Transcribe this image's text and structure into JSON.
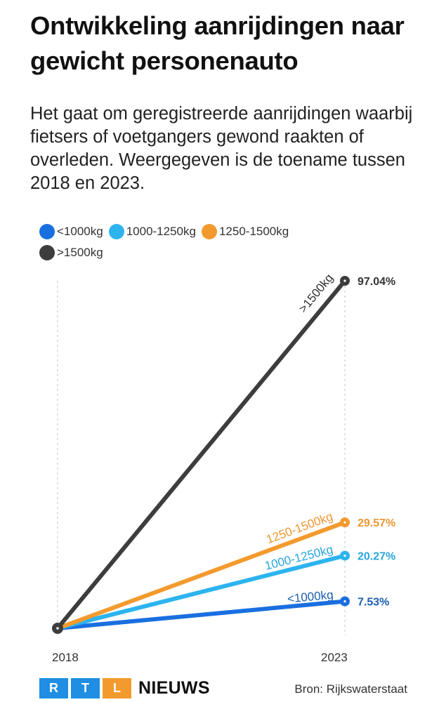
{
  "title": "Ontwikkeling aanrijdingen naar gewicht personenauto",
  "subtitle": "Het gaat om geregistreerde aanrijdingen waarbij fietsers of voetgangers gewond raakten of overleden. Weergegeven is de toename tussen 2018 en 2023.",
  "legend": [
    {
      "label": "<1000kg",
      "color": "#1a6fe0"
    },
    {
      "label": "1000-1250kg",
      "color": "#2db4ef"
    },
    {
      "label": "1250-1500kg",
      "color": "#f39a2e"
    },
    {
      "label": ">1500kg",
      "color": "#3d3d3d"
    }
  ],
  "chart_data": {
    "type": "line",
    "x": [
      "2018",
      "2023"
    ],
    "ylim": [
      0,
      97.04
    ],
    "grid": false,
    "legend_position": "top-left",
    "series": [
      {
        "name": "<1000kg",
        "values": [
          0,
          7.53
        ],
        "end_label": "7.53%",
        "color": "#1a6fe0",
        "label_color": "#1b5fb0"
      },
      {
        "name": "1000-1250kg",
        "values": [
          0,
          20.27
        ],
        "end_label": "20.27%",
        "color": "#2db4ef",
        "label_color": "#29a5de"
      },
      {
        "name": "1250-1500kg",
        "values": [
          0,
          29.57
        ],
        "end_label": "29.57%",
        "color": "#f39a2e",
        "label_color": "#ef9530"
      },
      {
        "name": ">1500kg",
        "values": [
          0,
          97.04
        ],
        "end_label": "97.04%",
        "color": "#3d3d3d",
        "label_color": "#333333"
      }
    ]
  },
  "footer": {
    "logo_letters": [
      "R",
      "T",
      "L"
    ],
    "logo_colors": [
      "#1f8ee3",
      "#1f8ee3",
      "#f39a2e"
    ],
    "brand_word": "NIEUWS",
    "source": "Bron: Rijkswaterstaat"
  }
}
